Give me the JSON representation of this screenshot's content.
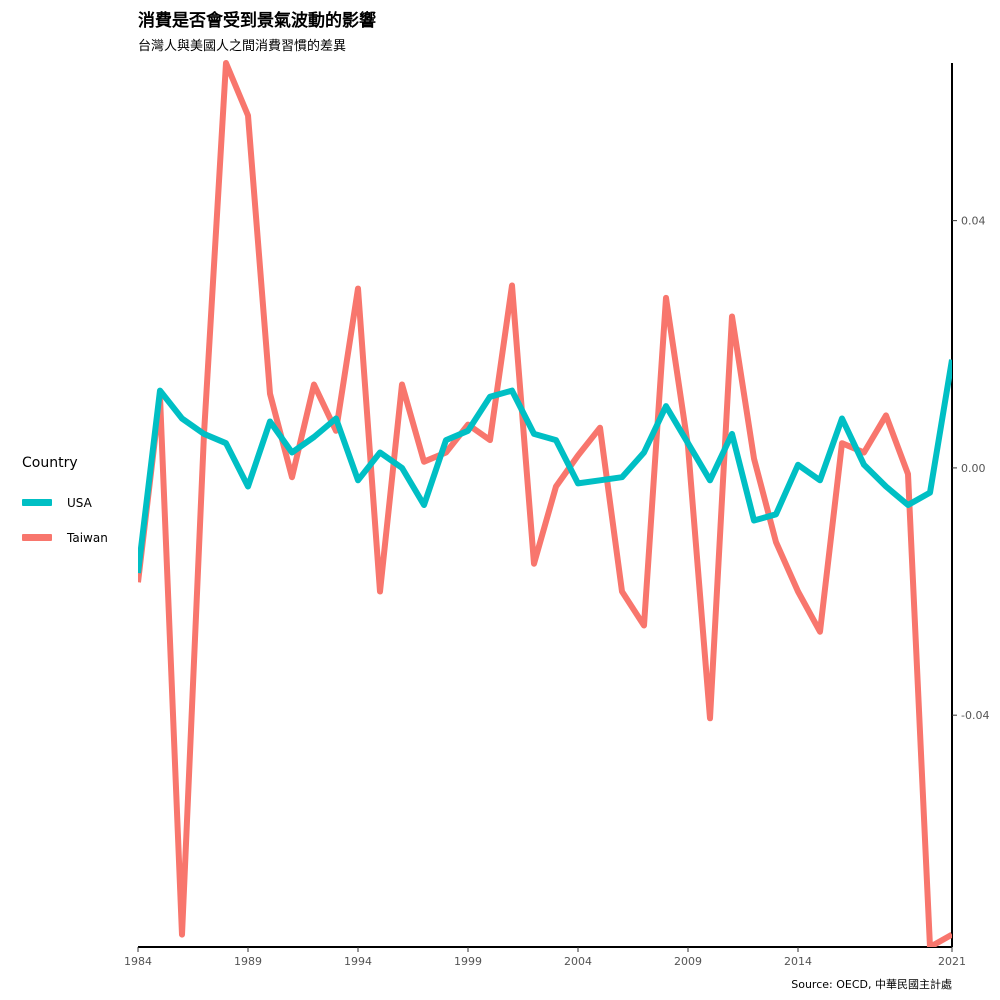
{
  "title": "消費是否會受到景氣波動的影響",
  "subtitle": "台灣人與美國人之間消費習慣的差異",
  "caption": "Source: OECD, 中華民國主計處",
  "legend": {
    "title": "Country",
    "position": "left",
    "items": [
      {
        "label": "USA",
        "color": "#00BFC4"
      },
      {
        "label": "Taiwan",
        "color": "#F8766D"
      }
    ]
  },
  "chart_data": {
    "type": "line",
    "x": [
      1984,
      1985,
      1986,
      1987,
      1988,
      1989,
      1990,
      1991,
      1992,
      1993,
      1994,
      1995,
      1996,
      1997,
      1998,
      1999,
      2000,
      2001,
      2002,
      2003,
      2004,
      2005,
      2006,
      2007,
      2008,
      2009,
      2010,
      2011,
      2012,
      2013,
      2014,
      2015,
      2016,
      2017,
      2018,
      2019,
      2020,
      2021
    ],
    "series": [
      {
        "name": "Taiwan",
        "color": "#F8766D",
        "values": [
          -0.0185,
          0.0115,
          -0.0755,
          0.0055,
          0.0655,
          0.057,
          0.012,
          -0.0015,
          0.0135,
          0.006,
          0.029,
          -0.02,
          0.0135,
          0.001,
          0.0025,
          0.007,
          0.0045,
          0.0295,
          -0.0155,
          -0.003,
          0.002,
          0.0065,
          -0.02,
          -0.0255,
          0.0275,
          0.0035,
          -0.0405,
          0.0245,
          0.0015,
          -0.012,
          -0.02,
          -0.0265,
          0.004,
          0.0025,
          0.0085,
          -0.001,
          -0.0775,
          -0.0755
        ]
      },
      {
        "name": "USA",
        "color": "#00BFC4",
        "values": [
          -0.017,
          0.0125,
          0.008,
          0.0055,
          0.004,
          -0.003,
          0.0075,
          0.0025,
          0.005,
          0.008,
          -0.002,
          0.0025,
          0.0,
          -0.006,
          0.0045,
          0.006,
          0.0115,
          0.0125,
          0.0055,
          0.0045,
          -0.0025,
          -0.002,
          -0.0015,
          0.0025,
          0.01,
          0.004,
          -0.002,
          0.0055,
          -0.0085,
          -0.0075,
          0.0005,
          -0.002,
          0.008,
          0.0005,
          -0.003,
          -0.006,
          -0.004,
          0.0175
        ]
      }
    ],
    "x_ticks": [
      1984,
      1989,
      1994,
      1999,
      2004,
      2009,
      2014,
      2021
    ],
    "y_ticks": [
      0.04,
      0.0,
      -0.04
    ],
    "y_tick_labels": [
      "0.04",
      "0.00",
      "-0.04"
    ],
    "xlim": [
      1984,
      2021
    ],
    "ylim": [
      -0.0775,
      0.0655
    ],
    "y_axis_position": "right",
    "grid": false
  }
}
